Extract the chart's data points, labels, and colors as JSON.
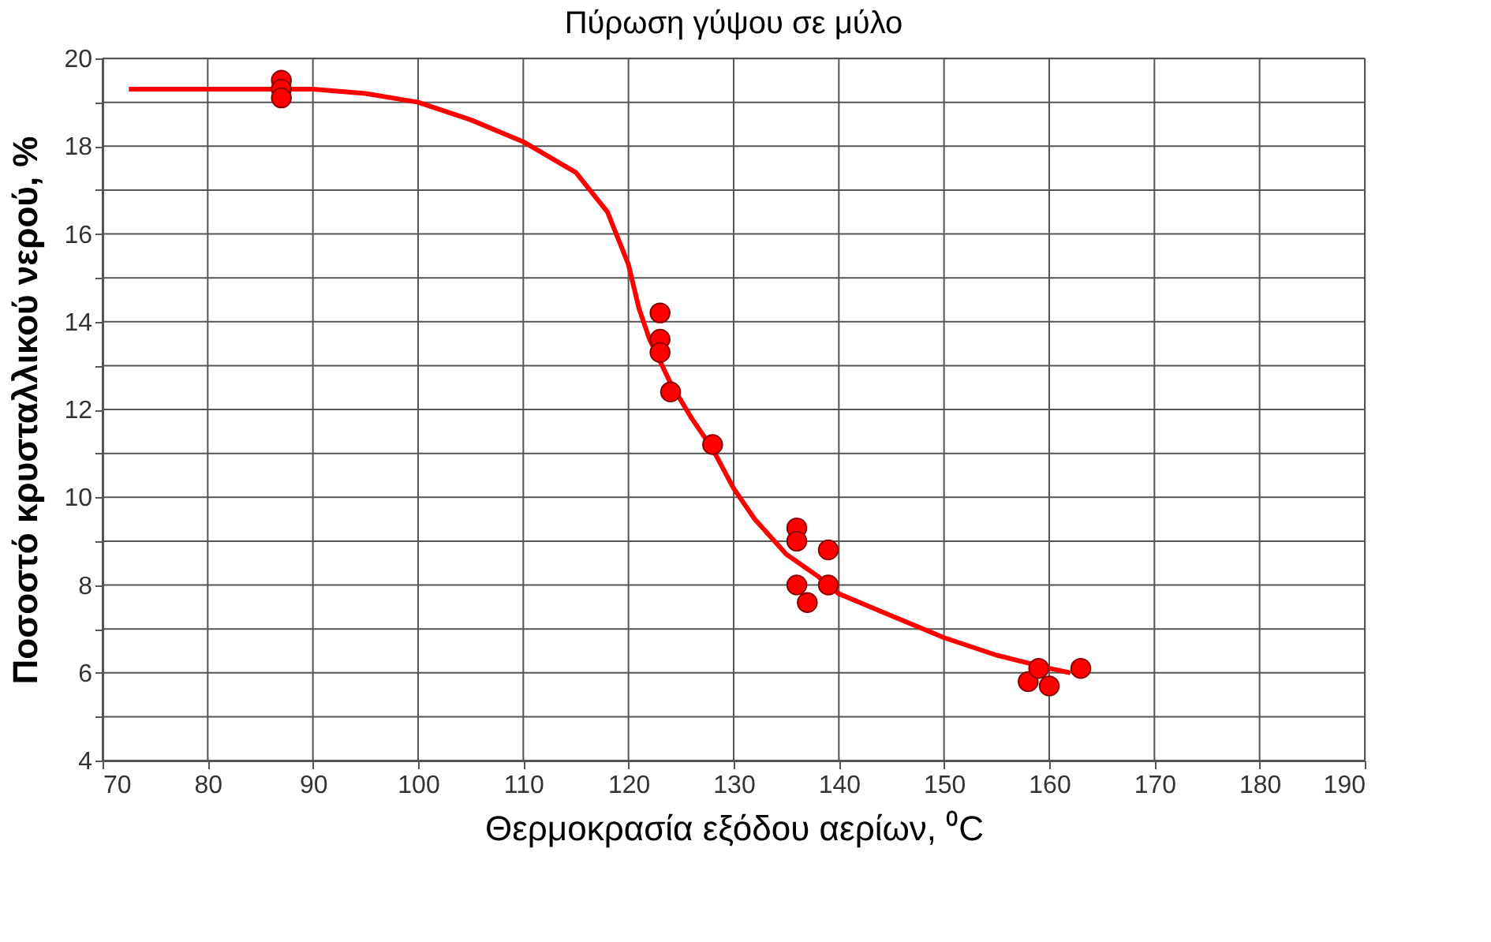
{
  "chart_data": {
    "type": "scatter",
    "title": "Πύρωση γύψου σε μύλο",
    "xlabel": "Θερμοκρασία εξόδου αερίων, ⁰C",
    "ylabel": "Ποσοστό κρυσταλλικού νερού, %",
    "xlim": [
      70,
      190
    ],
    "xticks": [
      70,
      80,
      90,
      100,
      110,
      120,
      130,
      140,
      150,
      160,
      170,
      180,
      190
    ],
    "ylim": [
      4,
      20
    ],
    "yticks": [
      4,
      {
        "value": 5,
        "label": null
      },
      6,
      {
        "value": 7,
        "label": null
      },
      8,
      {
        "value": 9,
        "label": null
      },
      10,
      {
        "value": 11,
        "label": null
      },
      12,
      {
        "value": 13,
        "label": null
      },
      14,
      {
        "value": 15,
        "label": null
      },
      16,
      {
        "value": 17,
        "label": null
      },
      18,
      {
        "value": 19,
        "label": null
      },
      20
    ],
    "grid": true,
    "series": [
      {
        "marker": "circle",
        "color": "#ff0000",
        "x": [
          87,
          87,
          87,
          123,
          123,
          123,
          124,
          128,
          136,
          136,
          136,
          137,
          139,
          139,
          158,
          159,
          160,
          163
        ],
        "values": [
          19.5,
          19.3,
          19.1,
          14.2,
          13.6,
          13.3,
          12.4,
          11.2,
          9.3,
          9.0,
          8.0,
          7.6,
          8.8,
          8.0,
          5.8,
          6.1,
          5.7,
          6.1
        ]
      },
      {
        "type": "line",
        "marker": "none",
        "line_style": "solid",
        "color": "#ff0000",
        "x": [
          72.5,
          90,
          95,
          100,
          105,
          110,
          115,
          118,
          120,
          121,
          122,
          124,
          126,
          128,
          130,
          132,
          135,
          138,
          140,
          145,
          150,
          155,
          160,
          162
        ],
        "values": [
          19.3,
          19.3,
          19.2,
          19.0,
          18.6,
          18.1,
          17.4,
          16.5,
          15.3,
          14.3,
          13.6,
          12.6,
          11.8,
          11.1,
          10.2,
          9.5,
          8.7,
          8.2,
          7.8,
          7.3,
          6.8,
          6.4,
          6.1,
          6.0
        ]
      }
    ]
  }
}
